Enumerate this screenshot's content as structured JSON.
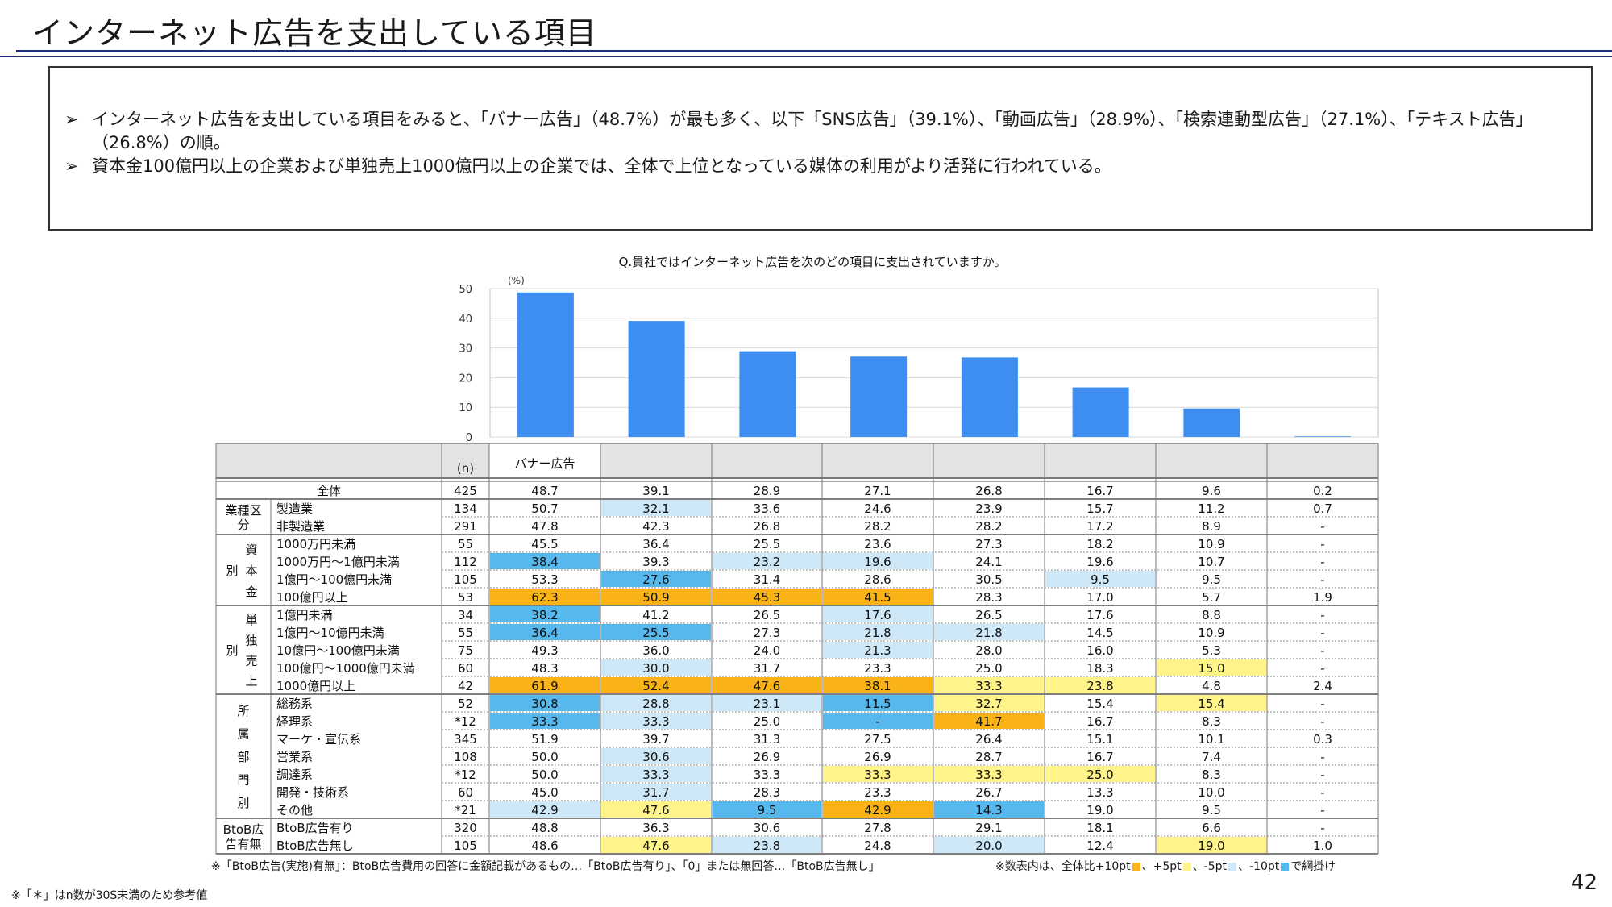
{
  "title": "インターネット広告を支出している項目",
  "bullets": [
    "インターネット広告を支出している項目をみると、「バナー広告」（48.7%）が最も多く、以下「SNS広告」（39.1%）、「動画広告」（28.9%）、「検索連動型広告」（27.1%）、「テキスト広告」（26.8%）の順。",
    "資本金100億円以上の企業および単独売上1000億円以上の企業では、全体で上位となっている媒体の利用がより活発に行われている。"
  ],
  "bullet_symbol": "➢",
  "colors": {
    "bar": "#3d8ef0",
    "orange": "#f9b316",
    "yellow": "#fff48a",
    "lightblue": "#cfe8f7",
    "blue": "#57b8ee"
  },
  "chart_data": {
    "type": "bar",
    "title": "Q.貴社ではインターネット広告を次のどの項目に支出されていますか。",
    "ylabel": "(%)",
    "ylim": [
      0,
      50
    ],
    "yticks": [
      0,
      10,
      20,
      30,
      40,
      50
    ],
    "grid": true,
    "categories": [
      "バナー広告",
      "",
      "",
      "",
      "",
      "",
      "",
      ""
    ],
    "values": [
      48.7,
      39.1,
      28.9,
      27.1,
      26.8,
      16.7,
      9.6,
      0.2
    ],
    "n_header": "(n)",
    "table": {
      "groups": [
        {
          "label": "",
          "rows": [
            {
              "label": "全体",
              "n": "425",
              "values": [
                "48.7",
                "39.1",
                "28.9",
                "27.1",
                "26.8",
                "16.7",
                "9.6",
                "0.2"
              ],
              "hl": [
                "",
                "",
                "",
                "",
                "",
                "",
                "",
                ""
              ]
            }
          ]
        },
        {
          "label": "業種区分",
          "rows": [
            {
              "label": "製造業",
              "n": "134",
              "values": [
                "50.7",
                "32.1",
                "33.6",
                "24.6",
                "23.9",
                "15.7",
                "11.2",
                "0.7"
              ],
              "hl": [
                "",
                "lightblue",
                "",
                "",
                "",
                "",
                "",
                ""
              ]
            },
            {
              "label": "非製造業",
              "n": "291",
              "values": [
                "47.8",
                "42.3",
                "26.8",
                "28.2",
                "28.2",
                "17.2",
                "8.9",
                "-"
              ],
              "hl": [
                "",
                "",
                "",
                "",
                "",
                "",
                "",
                ""
              ]
            }
          ]
        },
        {
          "label": "資本金別",
          "rows": [
            {
              "label": "1000万円未満",
              "n": "55",
              "values": [
                "45.5",
                "36.4",
                "25.5",
                "23.6",
                "27.3",
                "18.2",
                "10.9",
                "-"
              ],
              "hl": [
                "",
                "",
                "",
                "",
                "",
                "",
                "",
                ""
              ]
            },
            {
              "label": "1000万円～1億円未満",
              "n": "112",
              "values": [
                "38.4",
                "39.3",
                "23.2",
                "19.6",
                "24.1",
                "19.6",
                "10.7",
                "-"
              ],
              "hl": [
                "blue",
                "",
                "lightblue",
                "lightblue",
                "",
                "",
                "",
                ""
              ]
            },
            {
              "label": "1億円～100億円未満",
              "n": "105",
              "values": [
                "53.3",
                "27.6",
                "31.4",
                "28.6",
                "30.5",
                "9.5",
                "9.5",
                "-"
              ],
              "hl": [
                "",
                "blue",
                "",
                "",
                "",
                "lightblue",
                "",
                ""
              ]
            },
            {
              "label": "100億円以上",
              "n": "53",
              "values": [
                "62.3",
                "50.9",
                "45.3",
                "41.5",
                "28.3",
                "17.0",
                "5.7",
                "1.9"
              ],
              "hl": [
                "orange",
                "orange",
                "orange",
                "orange",
                "",
                "",
                "",
                ""
              ]
            }
          ]
        },
        {
          "label": "単独売上別",
          "rows": [
            {
              "label": "1億円未満",
              "n": "34",
              "values": [
                "38.2",
                "41.2",
                "26.5",
                "17.6",
                "26.5",
                "17.6",
                "8.8",
                "-"
              ],
              "hl": [
                "blue",
                "",
                "",
                "lightblue",
                "",
                "",
                "",
                ""
              ]
            },
            {
              "label": "1億円～10億円未満",
              "n": "55",
              "values": [
                "36.4",
                "25.5",
                "27.3",
                "21.8",
                "21.8",
                "14.5",
                "10.9",
                "-"
              ],
              "hl": [
                "blue",
                "blue",
                "",
                "lightblue",
                "lightblue",
                "",
                "",
                ""
              ]
            },
            {
              "label": "10億円～100億円未満",
              "n": "75",
              "values": [
                "49.3",
                "36.0",
                "24.0",
                "21.3",
                "28.0",
                "16.0",
                "5.3",
                "-"
              ],
              "hl": [
                "",
                "",
                "",
                "lightblue",
                "",
                "",
                "",
                ""
              ]
            },
            {
              "label": "100億円～1000億円未満",
              "n": "60",
              "values": [
                "48.3",
                "30.0",
                "31.7",
                "23.3",
                "25.0",
                "18.3",
                "15.0",
                "-"
              ],
              "hl": [
                "",
                "lightblue",
                "",
                "",
                "",
                "",
                "yellow",
                ""
              ]
            },
            {
              "label": "1000億円以上",
              "n": "42",
              "values": [
                "61.9",
                "52.4",
                "47.6",
                "38.1",
                "33.3",
                "23.8",
                "4.8",
                "2.4"
              ],
              "hl": [
                "orange",
                "orange",
                "orange",
                "orange",
                "yellow",
                "yellow",
                "",
                ""
              ]
            }
          ]
        },
        {
          "label": "所属部門別",
          "rows": [
            {
              "label": "総務系",
              "n": "52",
              "values": [
                "30.8",
                "28.8",
                "23.1",
                "11.5",
                "32.7",
                "15.4",
                "15.4",
                "-"
              ],
              "hl": [
                "blue",
                "lightblue",
                "lightblue",
                "blue",
                "yellow",
                "",
                "yellow",
                ""
              ]
            },
            {
              "label": "経理系",
              "n": "*12",
              "values": [
                "33.3",
                "33.3",
                "25.0",
                "-",
                "41.7",
                "16.7",
                "8.3",
                "-"
              ],
              "hl": [
                "blue",
                "lightblue",
                "",
                "blue",
                "orange",
                "",
                "",
                ""
              ]
            },
            {
              "label": "マーケ・宣伝系",
              "n": "345",
              "values": [
                "51.9",
                "39.7",
                "31.3",
                "27.5",
                "26.4",
                "15.1",
                "10.1",
                "0.3"
              ],
              "hl": [
                "",
                "",
                "",
                "",
                "",
                "",
                "",
                ""
              ]
            },
            {
              "label": "営業系",
              "n": "108",
              "values": [
                "50.0",
                "30.6",
                "26.9",
                "26.9",
                "28.7",
                "16.7",
                "7.4",
                "-"
              ],
              "hl": [
                "",
                "lightblue",
                "",
                "",
                "",
                "",
                "",
                ""
              ]
            },
            {
              "label": "調達系",
              "n": "*12",
              "values": [
                "50.0",
                "33.3",
                "33.3",
                "33.3",
                "33.3",
                "25.0",
                "8.3",
                "-"
              ],
              "hl": [
                "",
                "lightblue",
                "",
                "yellow",
                "yellow",
                "yellow",
                "",
                ""
              ]
            },
            {
              "label": "開発・技術系",
              "n": "60",
              "values": [
                "45.0",
                "31.7",
                "28.3",
                "23.3",
                "26.7",
                "13.3",
                "10.0",
                "-"
              ],
              "hl": [
                "",
                "lightblue",
                "",
                "",
                "",
                "",
                "",
                ""
              ]
            },
            {
              "label": "その他",
              "n": "*21",
              "values": [
                "42.9",
                "47.6",
                "9.5",
                "42.9",
                "14.3",
                "19.0",
                "9.5",
                "-"
              ],
              "hl": [
                "lightblue",
                "yellow",
                "blue",
                "orange",
                "blue",
                "",
                "",
                ""
              ]
            }
          ]
        },
        {
          "label": "BtoB広告有無",
          "rows": [
            {
              "label": "BtoB広告有り",
              "n": "320",
              "values": [
                "48.8",
                "36.3",
                "30.6",
                "27.8",
                "29.1",
                "18.1",
                "6.6",
                "-"
              ],
              "hl": [
                "",
                "",
                "",
                "",
                "",
                "",
                "",
                ""
              ]
            },
            {
              "label": "BtoB広告無し",
              "n": "105",
              "values": [
                "48.6",
                "47.6",
                "23.8",
                "24.8",
                "20.0",
                "12.4",
                "19.0",
                "1.0"
              ],
              "hl": [
                "",
                "yellow",
                "lightblue",
                "",
                "lightblue",
                "",
                "yellow",
                ""
              ]
            }
          ]
        }
      ]
    }
  },
  "group_label_lines": {
    "業種区分": [
      "業種区",
      "分"
    ],
    "資本金別": [
      "資",
      "本",
      "金"
    ],
    "資本金別_side": "別",
    "単独売上別": [
      "単",
      "独",
      "売",
      "上"
    ],
    "単独売上別_side": "別",
    "所属部門別": [
      "所",
      "属",
      "部",
      "門",
      "別"
    ],
    "BtoB広告有無": [
      "BtoB広",
      "告有無"
    ]
  },
  "footnote_table": "※「BtoB広告(実施)有無」：BtoB広告費用の回答に金額記載があるもの…「BtoB広告有り」、「0」または無回答…「BtoB広告無し」",
  "legend_note": {
    "prefix": "※数表内は、全体比+10pt",
    "p5": "、+5pt",
    "m5": "、-5pt",
    "m10": "、-10pt",
    "suffix": "で網掛け"
  },
  "footnote_bottom": "※「＊」はn数が30S未満のため参考値",
  "page_number": "42"
}
